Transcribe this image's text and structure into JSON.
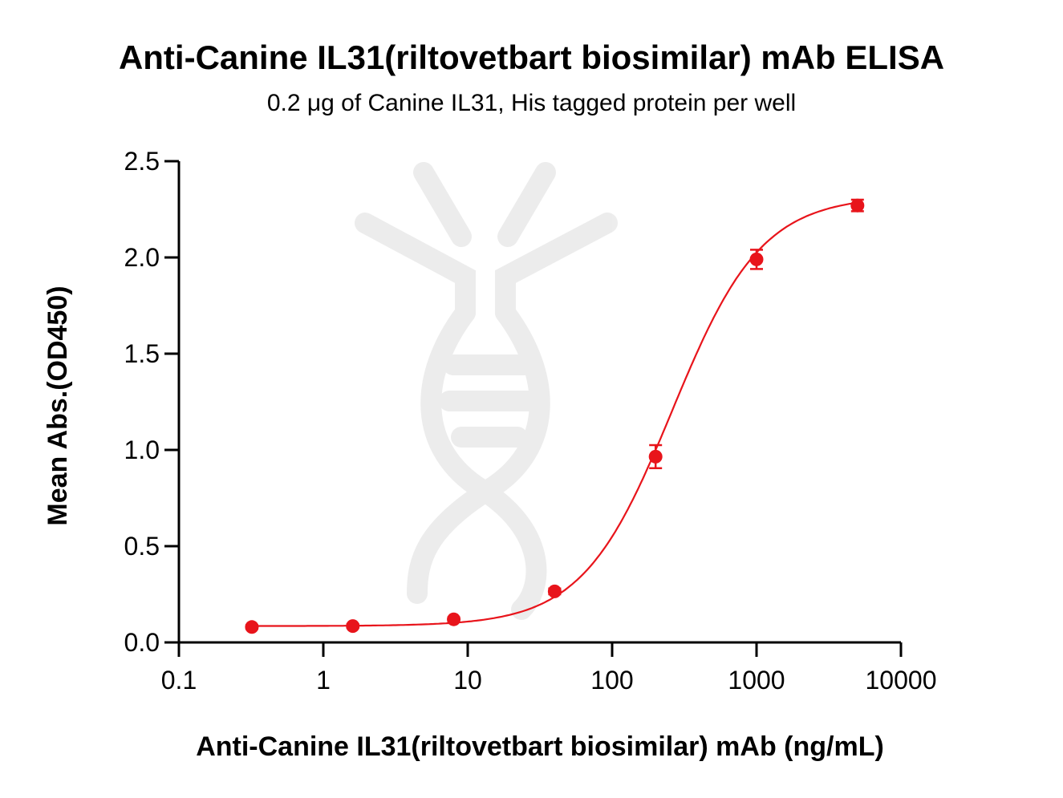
{
  "chart_data": {
    "type": "scatter",
    "title": "Anti-Canine IL31(riltovetbart biosimilar) mAb ELISA",
    "subtitle": "0.2 μg of Canine IL31, His tagged protein per well",
    "xlabel": "Anti-Canine IL31(riltovetbart biosimilar) mAb (ng/mL)",
    "ylabel": "Mean Abs.(OD450)",
    "xscale": "log",
    "xlim": [
      0.1,
      10000
    ],
    "ylim": [
      0,
      2.5
    ],
    "x_ticks": [
      0.1,
      1,
      10,
      100,
      1000,
      10000
    ],
    "x_tick_labels": [
      "0.1",
      "1",
      "10",
      "100",
      "1000",
      "10000"
    ],
    "y_ticks": [
      0.0,
      0.5,
      1.0,
      1.5,
      2.0,
      2.5
    ],
    "y_tick_labels": [
      "0.0",
      "0.5",
      "1.0",
      "1.5",
      "2.0",
      "2.5"
    ],
    "grid": false,
    "color": "#e8141b",
    "points": [
      {
        "x": 0.32,
        "y": 0.08,
        "err": 0.01
      },
      {
        "x": 1.6,
        "y": 0.085,
        "err": 0.01
      },
      {
        "x": 8,
        "y": 0.12,
        "err": 0.01
      },
      {
        "x": 40,
        "y": 0.265,
        "err": 0.015
      },
      {
        "x": 200,
        "y": 0.965,
        "err": 0.06
      },
      {
        "x": 1000,
        "y": 1.99,
        "err": 0.05
      },
      {
        "x": 5000,
        "y": 2.27,
        "err": 0.03
      }
    ],
    "fit": {
      "model": "4PL",
      "bottom": 0.085,
      "top": 2.32,
      "ec50": 260,
      "hill": 1.4
    }
  }
}
